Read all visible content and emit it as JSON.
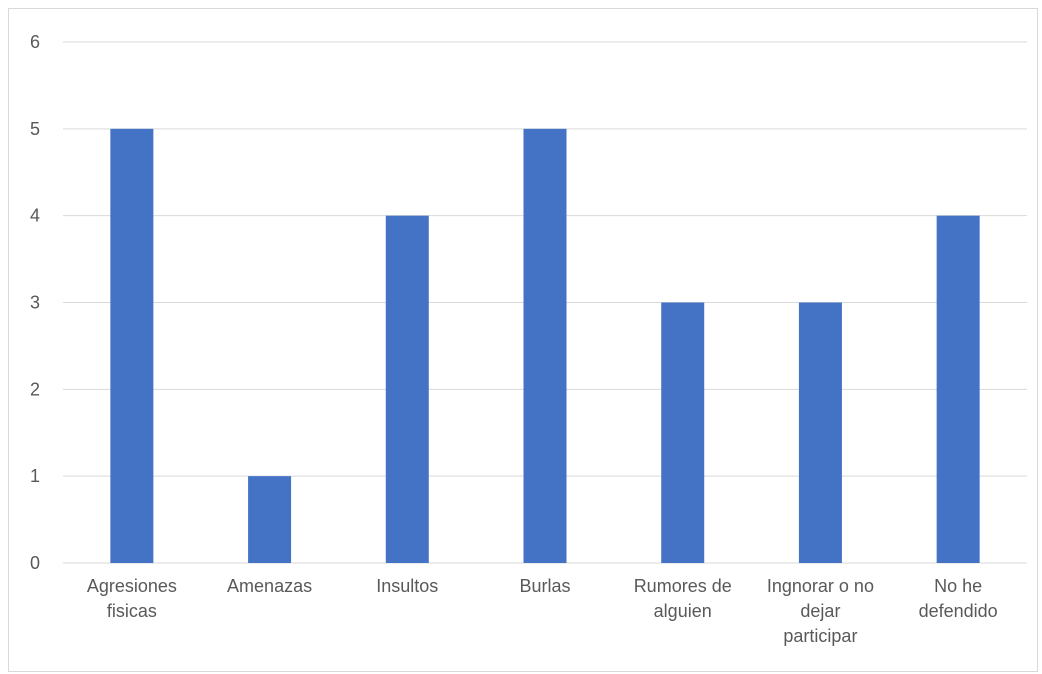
{
  "chart_data": {
    "type": "bar",
    "title": "",
    "xlabel": "",
    "ylabel": "",
    "categories": [
      [
        "Agresiones",
        "fisicas"
      ],
      [
        "Amenazas"
      ],
      [
        "Insultos"
      ],
      [
        "Burlas"
      ],
      [
        "Rumores de",
        "alguien"
      ],
      [
        "Ingnorar o no",
        "dejar",
        "participar"
      ],
      [
        "No he",
        "defendido"
      ]
    ],
    "values": [
      5,
      1,
      4,
      5,
      3,
      3,
      4
    ],
    "ylim": [
      0,
      6
    ],
    "yticks": [
      0,
      1,
      2,
      3,
      4,
      5,
      6
    ],
    "grid": true,
    "legend": "none",
    "colors": {
      "bar": "#4472c4",
      "grid": "#d9d9d9",
      "text": "#595959"
    }
  }
}
